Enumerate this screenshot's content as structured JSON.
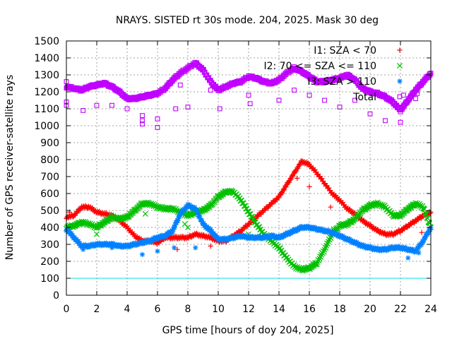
{
  "chart_data": {
    "type": "scatter",
    "title": "NRAYS. SISTED rt 30s mode. 204, 2025. Mask 30 deg",
    "xlabel": "GPS time [hours of doy 204, 2025]",
    "ylabel": "Number of GPS receiver-satellite rays",
    "xlim": [
      0,
      24
    ],
    "ylim": [
      0,
      1500
    ],
    "xticks": [
      0,
      2,
      4,
      6,
      8,
      10,
      12,
      14,
      16,
      18,
      20,
      22,
      24
    ],
    "yticks": [
      0,
      100,
      200,
      300,
      400,
      500,
      600,
      700,
      800,
      900,
      1000,
      1100,
      1200,
      1300,
      1400,
      1500
    ],
    "grid": true,
    "legend_position": "top-right",
    "series": [
      {
        "name": "I1: SZA < 70",
        "marker": "plus",
        "color": "#ff0000",
        "x": [
          0,
          0.5,
          1,
          1.5,
          2,
          2.5,
          3,
          3.5,
          4,
          4.5,
          5,
          5.5,
          6,
          6.5,
          7,
          7.5,
          8,
          8.5,
          9,
          9.5,
          10,
          10.5,
          11,
          11.5,
          12,
          12.5,
          13,
          13.5,
          14,
          14.5,
          15,
          15.5,
          16,
          16.5,
          17,
          17.5,
          18,
          18.5,
          19,
          19.5,
          20,
          20.5,
          21,
          21.5,
          22,
          22.5,
          23,
          23.5,
          24
        ],
        "y": [
          460,
          470,
          520,
          520,
          490,
          480,
          470,
          440,
          400,
          350,
          320,
          320,
          310,
          340,
          340,
          340,
          340,
          360,
          350,
          340,
          320,
          320,
          350,
          380,
          420,
          460,
          500,
          540,
          580,
          650,
          720,
          790,
          770,
          720,
          660,
          600,
          560,
          510,
          480,
          440,
          410,
          380,
          360,
          360,
          380,
          410,
          440,
          470,
          490
        ]
      },
      {
        "name": "I2: 70 <= SZA <= 110",
        "marker": "cross",
        "color": "#00c000",
        "x": [
          0,
          0.5,
          1,
          1.5,
          2,
          2.5,
          3,
          3.5,
          4,
          4.5,
          5,
          5.5,
          6,
          6.5,
          7,
          7.5,
          8,
          8.5,
          9,
          9.5,
          10,
          10.5,
          11,
          11.5,
          12,
          12.5,
          13,
          13.5,
          14,
          14.5,
          15,
          15.5,
          16,
          16.5,
          17,
          17.5,
          18,
          18.5,
          19,
          19.5,
          20,
          20.5,
          21,
          21.5,
          22,
          22.5,
          23,
          23.5,
          24
        ],
        "y": [
          400,
          410,
          430,
          420,
          400,
          430,
          460,
          450,
          460,
          500,
          540,
          540,
          520,
          510,
          510,
          490,
          470,
          490,
          500,
          530,
          580,
          610,
          610,
          560,
          490,
          420,
          360,
          320,
          280,
          220,
          170,
          150,
          160,
          190,
          270,
          360,
          410,
          420,
          450,
          500,
          530,
          540,
          520,
          470,
          470,
          510,
          540,
          520,
          400
        ]
      },
      {
        "name": "I3: SZA > 110",
        "marker": "star",
        "color": "#0080ff",
        "x": [
          0,
          0.5,
          1,
          1.5,
          2,
          2.5,
          3,
          3.5,
          4,
          4.5,
          5,
          5.5,
          6,
          6.5,
          7,
          7.5,
          8,
          8.5,
          9,
          9.5,
          10,
          10.5,
          11,
          11.5,
          12,
          12.5,
          13,
          13.5,
          14,
          14.5,
          15,
          15.5,
          16,
          16.5,
          17,
          17.5,
          18,
          18.5,
          19,
          19.5,
          20,
          20.5,
          21,
          21.5,
          22,
          22.5,
          23,
          23.5,
          24
        ],
        "y": [
          390,
          340,
          290,
          290,
          300,
          300,
          300,
          290,
          290,
          300,
          310,
          320,
          340,
          350,
          380,
          480,
          530,
          510,
          420,
          380,
          330,
          330,
          340,
          350,
          340,
          340,
          340,
          350,
          340,
          360,
          380,
          400,
          400,
          390,
          380,
          370,
          350,
          330,
          310,
          290,
          280,
          270,
          270,
          280,
          280,
          270,
          260,
          320,
          400
        ]
      },
      {
        "name": "Total",
        "marker": "square",
        "color": "#c000ff",
        "x": [
          0,
          0.5,
          1,
          1.5,
          2,
          2.5,
          3,
          3.5,
          4,
          4.5,
          5,
          5.5,
          6,
          6.5,
          7,
          7.5,
          8,
          8.5,
          9,
          9.5,
          10,
          10.5,
          11,
          11.5,
          12,
          12.5,
          13,
          13.5,
          14,
          14.5,
          15,
          15.5,
          16,
          16.5,
          17,
          17.5,
          18,
          18.5,
          19,
          19.5,
          20,
          20.5,
          21,
          21.5,
          22,
          22.5,
          23,
          23.5,
          24
        ],
        "y": [
          1230,
          1220,
          1210,
          1230,
          1240,
          1250,
          1230,
          1200,
          1160,
          1160,
          1170,
          1180,
          1190,
          1220,
          1270,
          1310,
          1340,
          1370,
          1330,
          1260,
          1210,
          1230,
          1250,
          1260,
          1290,
          1280,
          1260,
          1250,
          1270,
          1310,
          1340,
          1320,
          1290,
          1260,
          1260,
          1270,
          1280,
          1300,
          1270,
          1220,
          1200,
          1190,
          1170,
          1140,
          1090,
          1150,
          1210,
          1260,
          1310
        ]
      }
    ],
    "reference_line": {
      "y": 100,
      "color": "#00e0e0"
    },
    "outliers": {
      "I1: SZA < 70": [
        [
          0.2,
          490
        ],
        [
          9.5,
          290
        ],
        [
          15.2,
          690
        ],
        [
          16,
          640
        ],
        [
          17.4,
          520
        ],
        [
          23.4,
          370
        ],
        [
          22.2,
          280
        ],
        [
          6.1,
          310
        ],
        [
          7.3,
          270
        ]
      ],
      "I2: 70 <= SZA <= 110": [
        [
          2,
          360
        ],
        [
          5.2,
          480
        ],
        [
          7.8,
          420
        ],
        [
          8,
          400
        ],
        [
          12,
          360
        ],
        [
          17.6,
          390
        ]
      ],
      "I3: SZA > 110": [
        [
          1.1,
          270
        ],
        [
          3,
          280
        ],
        [
          5,
          240
        ],
        [
          6,
          260
        ],
        [
          7.1,
          280
        ],
        [
          8.5,
          280
        ],
        [
          22.5,
          220
        ],
        [
          23.2,
          250
        ]
      ],
      "Total": [
        [
          0,
          1260
        ],
        [
          0,
          1140
        ],
        [
          0,
          1120
        ],
        [
          1.1,
          1090
        ],
        [
          2,
          1120
        ],
        [
          3,
          1120
        ],
        [
          4,
          1100
        ],
        [
          5,
          1060
        ],
        [
          5,
          1030
        ],
        [
          5,
          1010
        ],
        [
          6,
          1040
        ],
        [
          6,
          990
        ],
        [
          7.2,
          1100
        ],
        [
          7.5,
          1240
        ],
        [
          8,
          1110
        ],
        [
          9.5,
          1210
        ],
        [
          10.1,
          1100
        ],
        [
          12,
          1180
        ],
        [
          12.1,
          1130
        ],
        [
          14,
          1150
        ],
        [
          15,
          1210
        ],
        [
          16,
          1180
        ],
        [
          17,
          1150
        ],
        [
          18,
          1110
        ],
        [
          19,
          1150
        ],
        [
          20,
          1070
        ],
        [
          21,
          1030
        ],
        [
          22,
          1020
        ],
        [
          22.2,
          1180
        ],
        [
          23,
          1160
        ],
        [
          23.1,
          1190
        ]
      ]
    }
  }
}
